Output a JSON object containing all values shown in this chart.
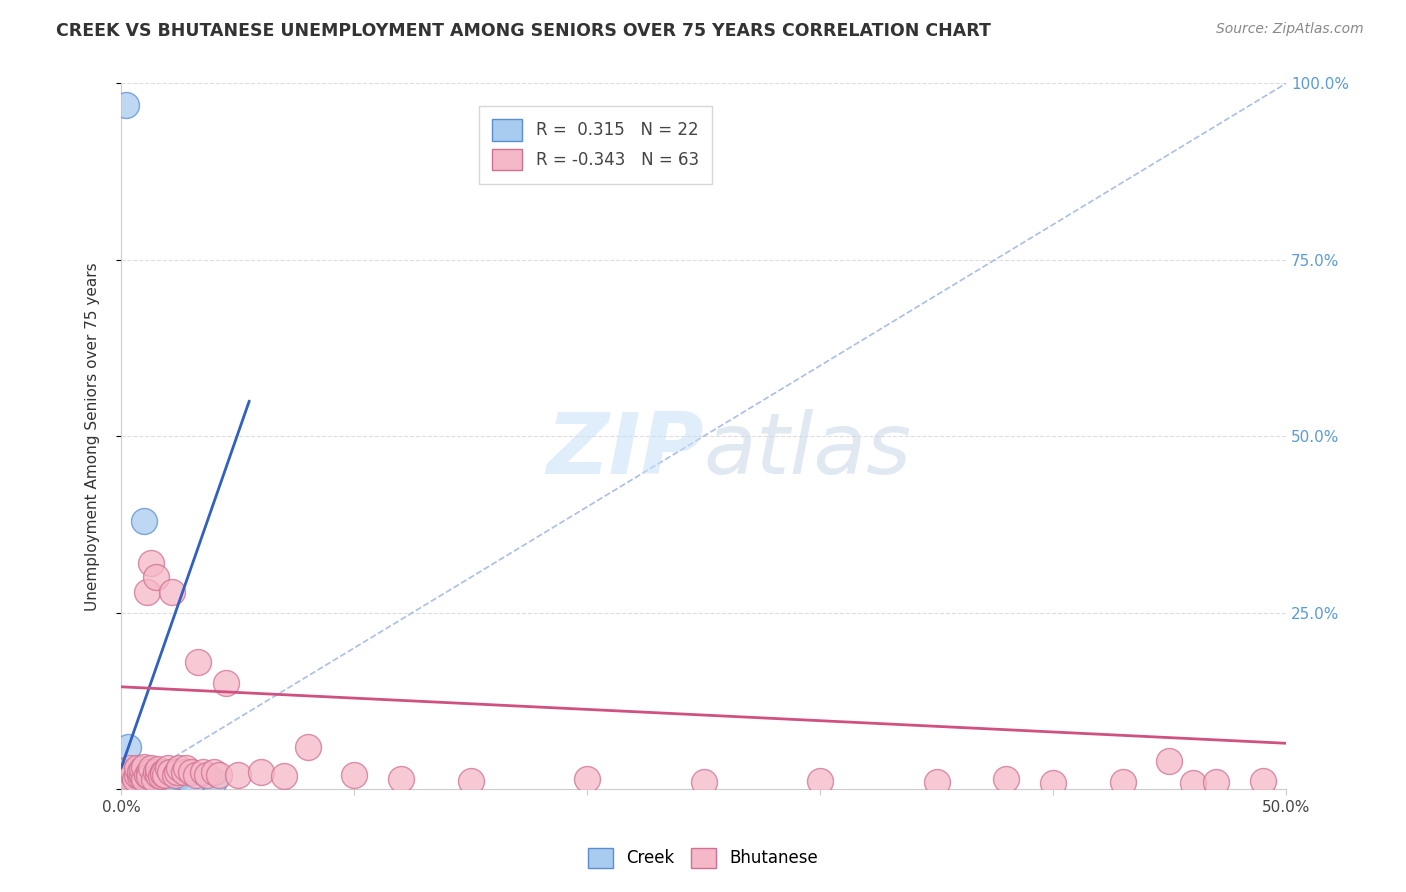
{
  "title": "CREEK VS BHUTANESE UNEMPLOYMENT AMONG SENIORS OVER 75 YEARS CORRELATION CHART",
  "source": "Source: ZipAtlas.com",
  "ylabel": "Unemployment Among Seniors over 75 years",
  "xlim": [
    0.0,
    0.5
  ],
  "ylim": [
    0.0,
    1.0
  ],
  "creek_R": 0.315,
  "creek_N": 22,
  "bhutanese_R": -0.343,
  "bhutanese_N": 63,
  "creek_color": "#A8CCF0",
  "bhutanese_color": "#F5B8C8",
  "creek_edge_color": "#5A8ED0",
  "bhutanese_edge_color": "#D07090",
  "creek_line_color": "#3060C0",
  "bhutanese_line_color": "#D05080",
  "diag_color": "#A0B8E0",
  "grid_color": "#DDDDDD",
  "right_tick_color": "#5B9BD5",
  "creek_points_x": [
    0.001,
    0.002,
    0.003,
    0.003,
    0.004,
    0.004,
    0.005,
    0.005,
    0.006,
    0.006,
    0.007,
    0.008,
    0.009,
    0.01,
    0.01,
    0.012,
    0.015,
    0.018,
    0.02,
    0.025,
    0.03,
    0.04
  ],
  "creek_points_y": [
    0.01,
    0.97,
    0.02,
    0.06,
    0.015,
    0.025,
    0.015,
    0.02,
    0.01,
    0.02,
    0.018,
    0.015,
    0.012,
    0.015,
    0.38,
    0.01,
    0.015,
    0.012,
    0.01,
    0.018,
    0.008,
    0.012
  ],
  "bhutanese_points_x": [
    0.002,
    0.003,
    0.004,
    0.005,
    0.005,
    0.006,
    0.007,
    0.007,
    0.008,
    0.008,
    0.009,
    0.009,
    0.01,
    0.01,
    0.011,
    0.011,
    0.012,
    0.012,
    0.013,
    0.013,
    0.014,
    0.015,
    0.015,
    0.016,
    0.016,
    0.017,
    0.018,
    0.018,
    0.019,
    0.02,
    0.021,
    0.022,
    0.023,
    0.024,
    0.025,
    0.027,
    0.028,
    0.03,
    0.032,
    0.033,
    0.035,
    0.037,
    0.04,
    0.042,
    0.045,
    0.05,
    0.06,
    0.07,
    0.08,
    0.1,
    0.12,
    0.15,
    0.2,
    0.25,
    0.3,
    0.35,
    0.38,
    0.4,
    0.43,
    0.45,
    0.46,
    0.47,
    0.49
  ],
  "bhutanese_points_y": [
    0.02,
    0.015,
    0.03,
    0.02,
    0.025,
    0.015,
    0.02,
    0.03,
    0.018,
    0.025,
    0.02,
    0.028,
    0.015,
    0.032,
    0.02,
    0.28,
    0.025,
    0.018,
    0.03,
    0.32,
    0.015,
    0.025,
    0.3,
    0.02,
    0.028,
    0.018,
    0.025,
    0.022,
    0.02,
    0.03,
    0.025,
    0.28,
    0.02,
    0.025,
    0.03,
    0.025,
    0.03,
    0.025,
    0.02,
    0.18,
    0.025,
    0.02,
    0.025,
    0.02,
    0.15,
    0.02,
    0.025,
    0.018,
    0.06,
    0.02,
    0.015,
    0.012,
    0.015,
    0.01,
    0.012,
    0.01,
    0.015,
    0.008,
    0.01,
    0.04,
    0.008,
    0.01,
    0.012
  ]
}
